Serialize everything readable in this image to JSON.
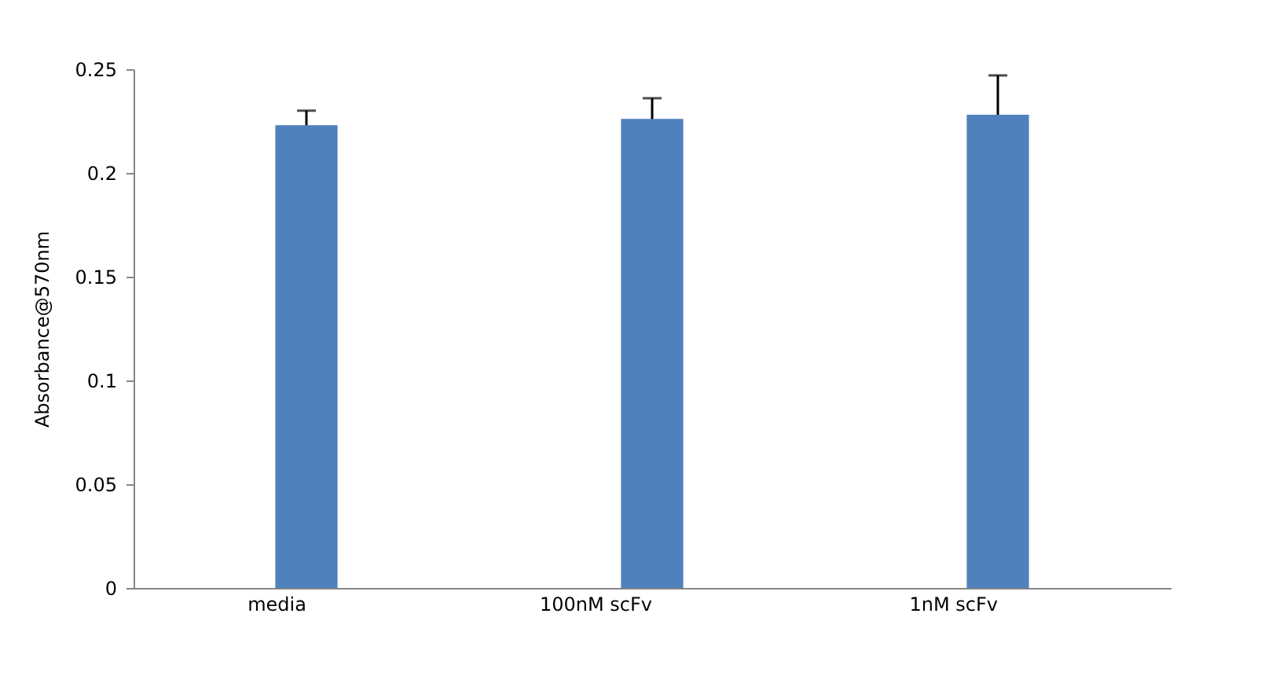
{
  "chart_data": {
    "type": "bar",
    "ylabel": "Absorbance@570nm",
    "categories": [
      "media",
      "100nM scFv",
      "1nM scFv"
    ],
    "values": [
      0.223,
      0.226,
      0.228
    ],
    "errors": [
      0.007,
      0.01,
      0.019
    ],
    "color": "#4f81bd",
    "ylim": [
      0,
      0.25
    ],
    "yticks": [
      0,
      0.05,
      0.1,
      0.15,
      0.2,
      0.25
    ],
    "grid": false
  }
}
